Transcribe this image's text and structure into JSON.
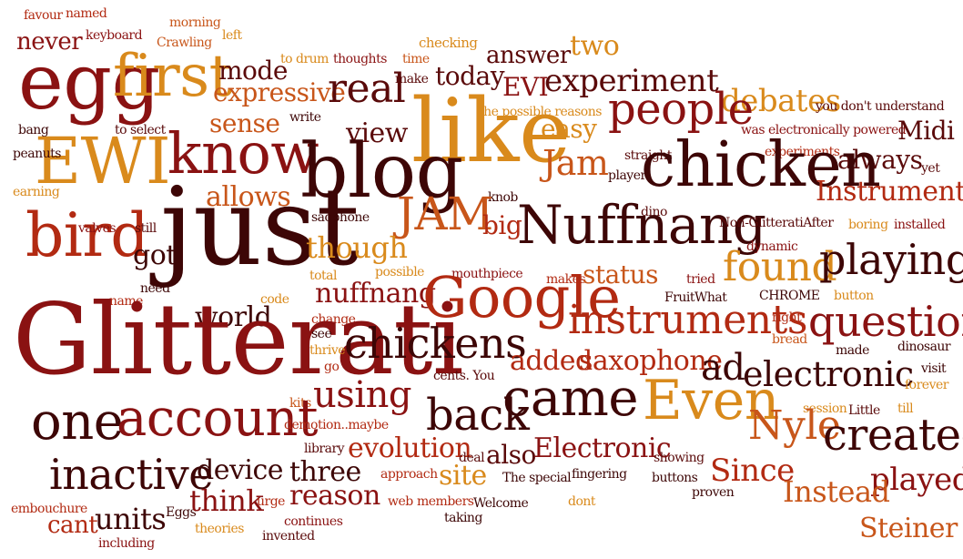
{
  "words": [
    "favour",
    "named",
    "morning",
    "left",
    "never",
    "keyboard",
    "Crawling",
    "to drum",
    "thoughts",
    "time",
    "checking",
    "two",
    "egg",
    "first",
    "mode",
    "make",
    "answer",
    "expressive",
    "today",
    "EVI",
    "experiment",
    "real",
    "debates",
    "you don't understand",
    "EWI",
    "bang",
    "to select",
    "sense",
    "write",
    "the possible reasons",
    "like",
    "people",
    "was electronically powered",
    "Midi",
    "know",
    "view",
    "easy",
    "straight",
    "peanuts",
    "blog",
    "experiments",
    "always",
    "yet",
    "earning",
    "player",
    "Jam",
    "chicken",
    "bird",
    "allows",
    "knob",
    "Instrument",
    "just",
    "valves",
    "still",
    "saophone",
    "JAM",
    "big",
    "dino",
    "Nuffnang",
    "Non-GlitteratiAfter",
    "boring",
    "installed",
    "got",
    "though",
    "dynamic",
    "found",
    "playing",
    "need",
    "total",
    "possible",
    "makes",
    "mouthpiece",
    "status",
    "tried",
    "name",
    "code",
    "nuffnang",
    "Google",
    "FruitWhat",
    "CHROME",
    "button",
    "world",
    "change",
    "instruments",
    "right",
    "question",
    "Glitterati",
    "see",
    "chickens",
    "bread",
    "made",
    "thrive",
    "go",
    "added",
    "saxophone",
    "dinosaur",
    "ad",
    "electronic",
    "visit",
    "cents. You",
    "using",
    "forever",
    "kits",
    "session",
    "Little",
    "till",
    "one",
    "account",
    "came",
    "Even",
    "demotion..maybe",
    "back",
    "Nyle",
    "created",
    "library",
    "evolution",
    "deal",
    "also",
    "Electronic",
    "inactive",
    "device",
    "three",
    "site",
    "showing",
    "Since",
    "approach",
    "fingering",
    "The special",
    "buttons",
    "played",
    "Instead",
    "reason",
    "embouchure",
    "Eggs",
    "think",
    "urge",
    "web",
    "members",
    "Welcome",
    "dont",
    "proven",
    "cant",
    "units",
    "theories",
    "continues",
    "taking",
    "Steiner",
    "including",
    "invented"
  ],
  "colors": {
    "maroon_dark": "#5a0a0a",
    "red_deep": "#8a1212",
    "red_orange": "#b22a12",
    "orange": "#c8561a",
    "amber": "#d98a1c",
    "maroon_black": "#3d0606"
  }
}
